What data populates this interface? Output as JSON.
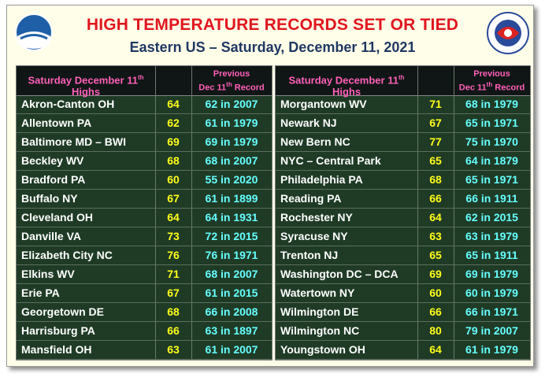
{
  "header": {
    "title": "HIGH TEMPERATURE RECORDS SET OR TIED",
    "subtitle": "Eastern US – Saturday, December 11, 2021"
  },
  "table_header": {
    "highs": {
      "main": "Saturday December 11",
      "sup": "th",
      "tail": "Highs"
    },
    "previous": {
      "line1": "Previous",
      "main": "Dec 11",
      "sup": "th",
      "tail": "Record"
    }
  },
  "left_rows": [
    [
      "Akron-Canton OH",
      64,
      "62 in 2007"
    ],
    [
      "Allentown PA",
      62,
      "61 in 1979"
    ],
    [
      "Baltimore MD – BWI",
      69,
      "69 in 1979"
    ],
    [
      "Beckley WV",
      68,
      "68 in 2007"
    ],
    [
      "Bradford PA",
      60,
      "55 in 2020"
    ],
    [
      "Buffalo NY",
      67,
      "61 in 1899"
    ],
    [
      "Cleveland OH",
      64,
      "64 in 1931"
    ],
    [
      "Danville VA",
      73,
      "72 in 2015"
    ],
    [
      "Elizabeth City NC",
      76,
      "76 in 1971"
    ],
    [
      "Elkins WV",
      71,
      "68 in 2007"
    ],
    [
      "Erie PA",
      67,
      "61 in 2015"
    ],
    [
      "Georgetown DE",
      68,
      "66 in 2008"
    ],
    [
      "Harrisburg PA",
      66,
      "63 in 1897"
    ],
    [
      "Mansfield OH",
      63,
      "61 in 2007"
    ]
  ],
  "right_rows": [
    [
      "Morgantown WV",
      71,
      "68 in 1979"
    ],
    [
      "Newark NJ",
      67,
      "65 in 1971"
    ],
    [
      "New Bern NC",
      77,
      "75 in 1970"
    ],
    [
      "NYC – Central Park",
      65,
      "64 in 1879"
    ],
    [
      "Philadelphia PA",
      68,
      "65 in 1971"
    ],
    [
      "Reading PA",
      66,
      "66 in 1911"
    ],
    [
      "Rochester NY",
      64,
      "62 in 2015"
    ],
    [
      "Syracuse NY",
      63,
      "63 in 1979"
    ],
    [
      "Trenton NJ",
      65,
      "65 in 1911"
    ],
    [
      "Washington DC – DCA",
      69,
      "69 in 1979"
    ],
    [
      "Watertown NY",
      60,
      "60 in 1979"
    ],
    [
      "Wilmington DE",
      66,
      "66 in 1971"
    ],
    [
      "Wilmington NC",
      80,
      "79 in 2007"
    ],
    [
      "Youngstown OH",
      64,
      "61 in 1979"
    ]
  ]
}
